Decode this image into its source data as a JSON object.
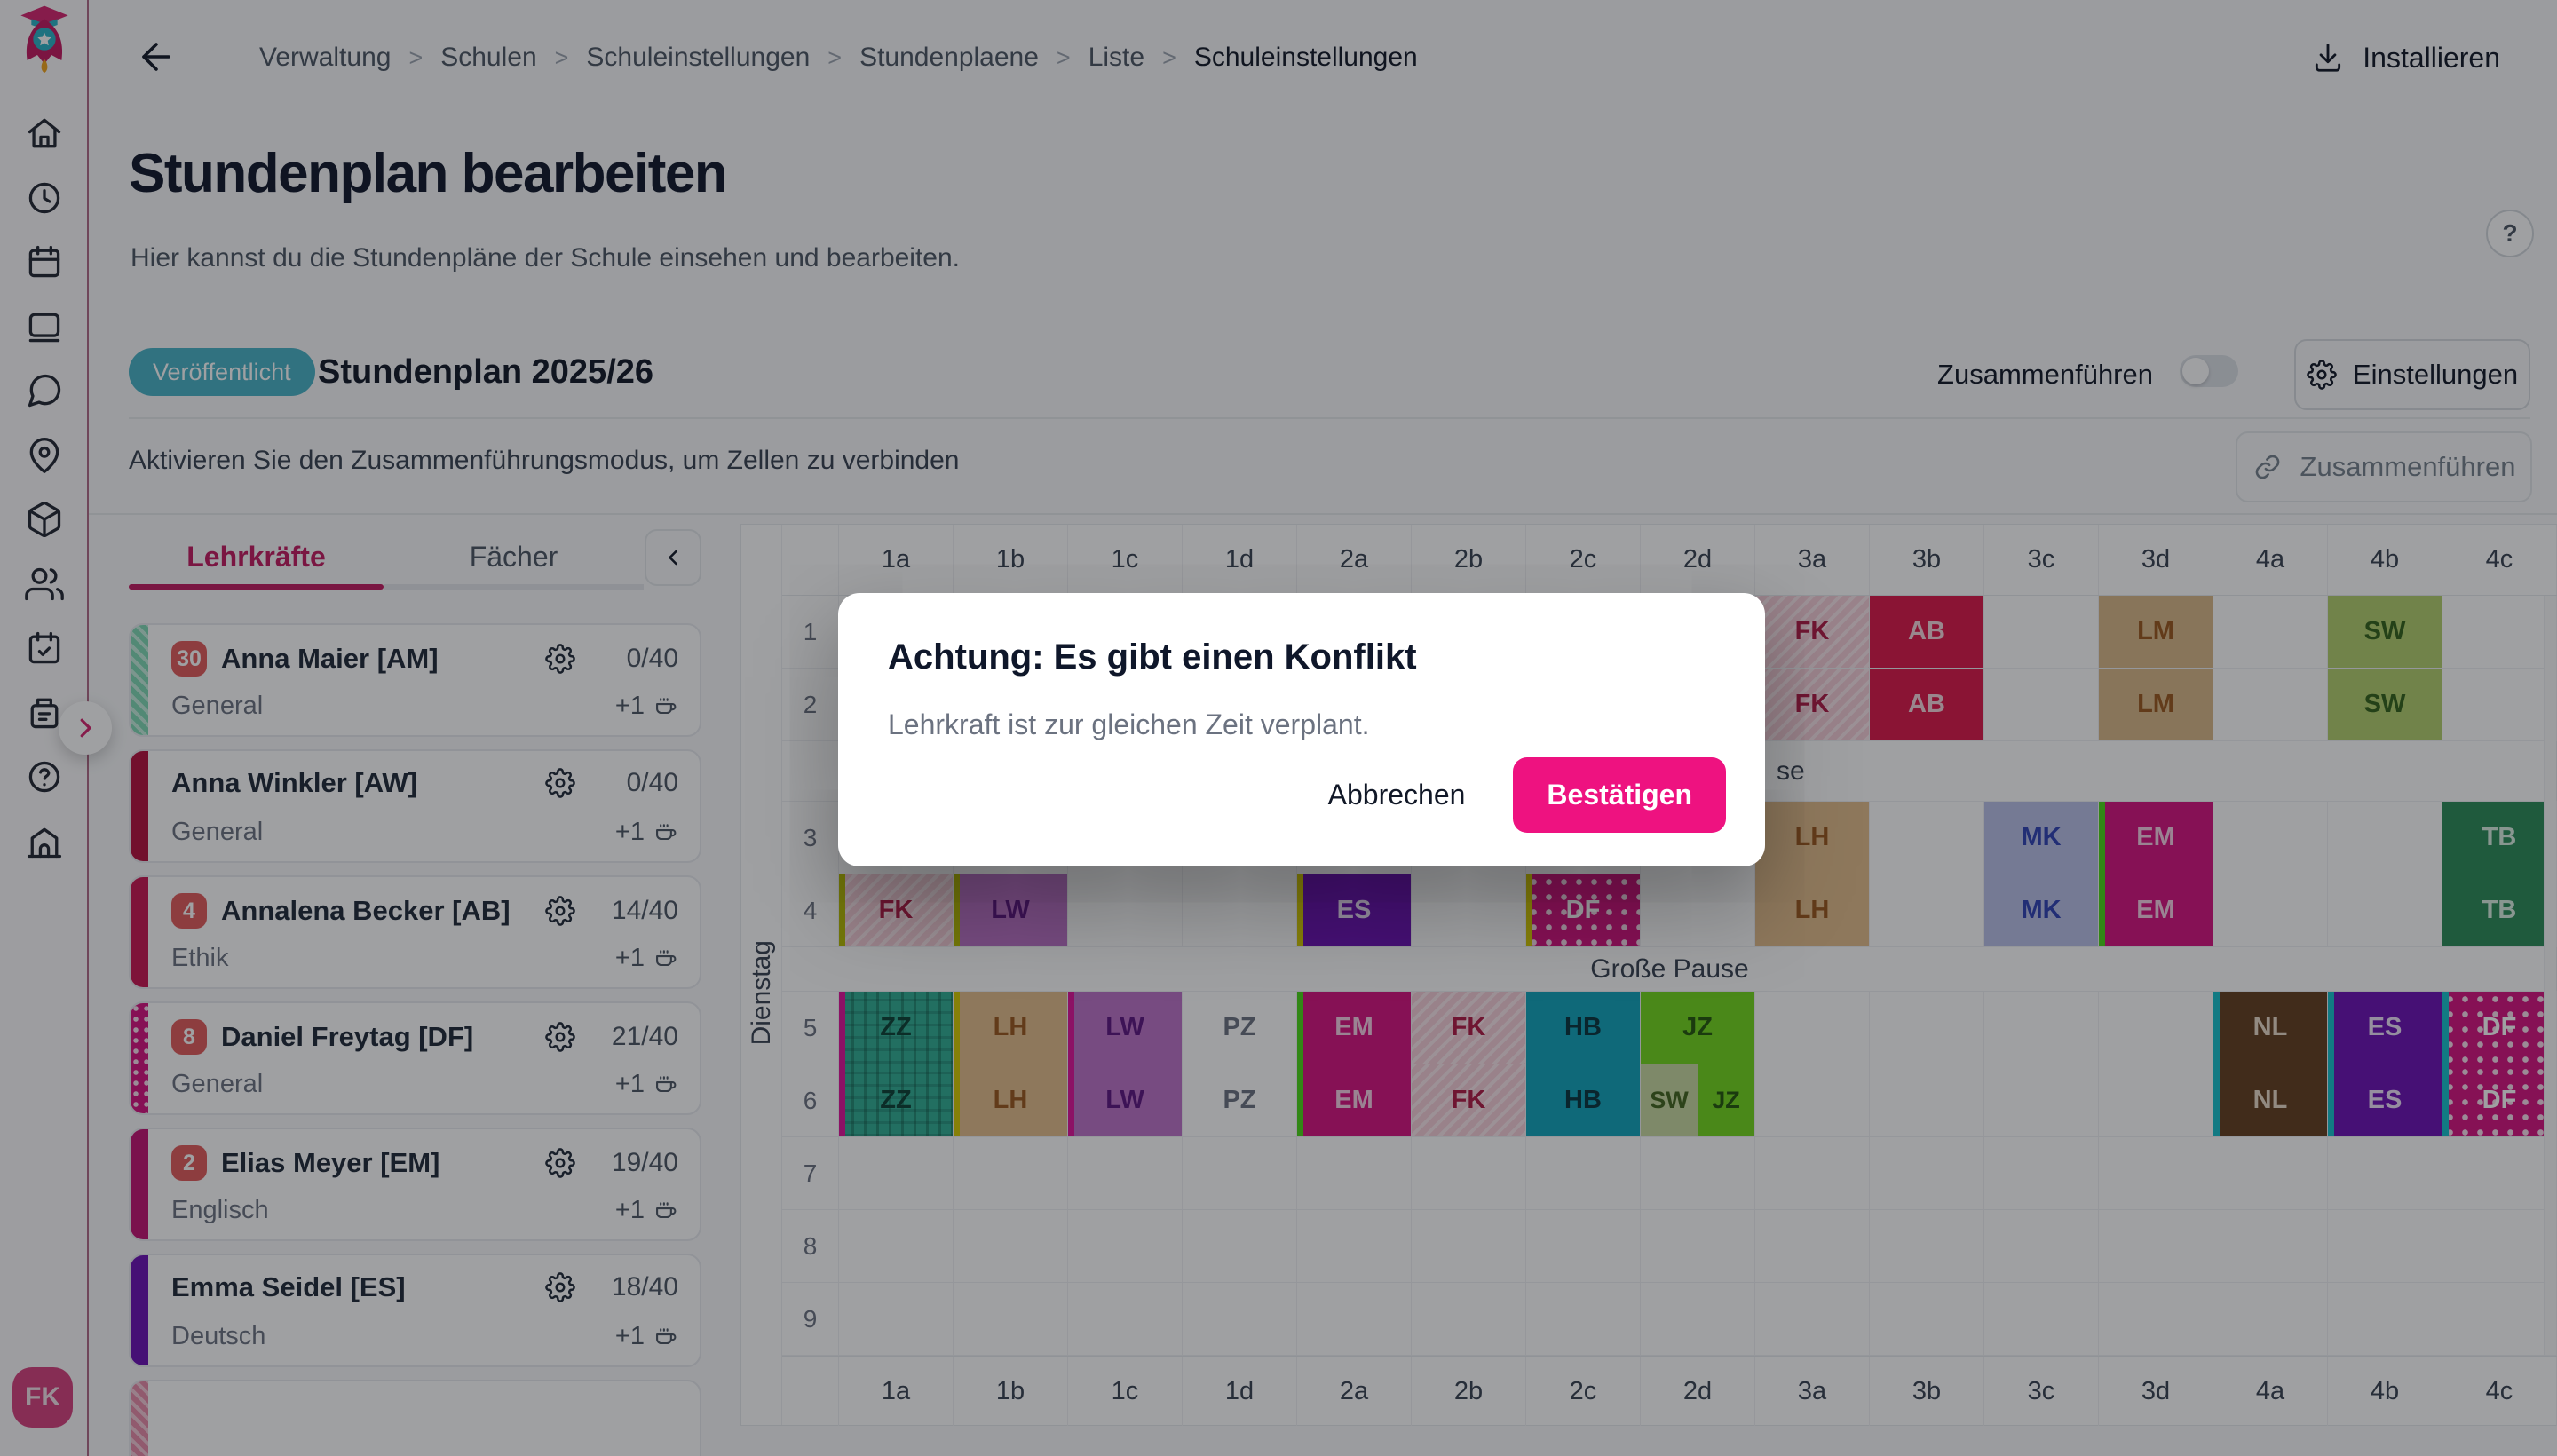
{
  "theme": {
    "accent": "#c2195f",
    "badge_teal": "#49b2c6",
    "confirm_pink": "#ee1280",
    "avatar_pink": "#d6407e"
  },
  "sidebar": {
    "icons": [
      "home",
      "clock",
      "calendar",
      "book",
      "chat",
      "map-pin",
      "package",
      "users",
      "calendar-check",
      "invoice",
      "help",
      "school"
    ],
    "avatar": "FK"
  },
  "topbar": {
    "breadcrumbs": [
      {
        "label": "Verwaltung"
      },
      {
        "label": "Schulen"
      },
      {
        "label": "Schuleinstellungen"
      },
      {
        "label": "Stundenplaene"
      },
      {
        "label": "Liste"
      },
      {
        "label": "Schuleinstellungen",
        "current": true
      }
    ],
    "install_label": "Installieren"
  },
  "page": {
    "title": "Stundenplan bearbeiten",
    "subtitle": "Hier kannst du die Stundenpläne der Schule einsehen und bearbeiten.",
    "help_glyph": "?"
  },
  "plan": {
    "status_badge": "Veröffentlicht",
    "name": "Stundenplan 2025/26",
    "merge_toggle_label": "Zusammenführen",
    "merge_toggle_on": false,
    "settings_label": "Einstellungen",
    "hint": "Aktivieren Sie den Zusammenführungsmodus, um Zellen zu verbinden",
    "merge_button_label": "Zusammenführen"
  },
  "panel": {
    "tabs": [
      {
        "label": "Lehrkräfte",
        "active": true
      },
      {
        "label": "Fächer",
        "active": false
      }
    ],
    "teachers": [
      {
        "badge": "30",
        "name": "Anna Maier [AM]",
        "subject": "General",
        "load": "0/40",
        "extra": "+1",
        "stripe": {
          "color": "#7fd9b5",
          "pattern": "hatch"
        }
      },
      {
        "badge": "",
        "name": "Anna Winkler [AW]",
        "subject": "General",
        "load": "0/40",
        "extra": "+1",
        "stripe": {
          "color": "#b50f3c",
          "pattern": "solid"
        }
      },
      {
        "badge": "4",
        "name": "Annalena Becker [AB]",
        "subject": "Ethik",
        "load": "14/40",
        "extra": "+1",
        "stripe": {
          "color": "#c81450",
          "pattern": "solid"
        }
      },
      {
        "badge": "8",
        "name": "Daniel Freytag [DF]",
        "subject": "General",
        "load": "21/40",
        "extra": "+1",
        "stripe": {
          "color": "#d5117f",
          "pattern": "dots"
        }
      },
      {
        "badge": "2",
        "name": "Elias Meyer [EM]",
        "subject": "Englisch",
        "load": "19/40",
        "extra": "+1",
        "stripe": {
          "color": "#c11272",
          "pattern": "solid"
        }
      },
      {
        "badge": "",
        "name": "Emma Seidel [ES]",
        "subject": "Deutsch",
        "load": "18/40",
        "extra": "+1",
        "stripe": {
          "color": "#6c10b4",
          "pattern": "solid"
        }
      },
      {
        "badge": "",
        "name": "",
        "subject": "",
        "load": "",
        "extra": "",
        "stripe": {
          "color": "#e88aa8",
          "pattern": "hatch"
        },
        "partial": true
      }
    ]
  },
  "timetable": {
    "day_label": "Dienstag",
    "classes": [
      "1a",
      "1b",
      "1c",
      "1d",
      "2a",
      "2b",
      "2c",
      "2d",
      "3a",
      "3b",
      "3c",
      "3d",
      "4a",
      "4b",
      "4c"
    ],
    "rows": [
      {
        "type": "period",
        "num": "1",
        "cells": [
          {
            "col": 8,
            "code": "FK"
          },
          {
            "col": 9,
            "code": "AB"
          },
          {
            "col": 11,
            "code": "LM"
          },
          {
            "col": 13,
            "code": "SW"
          }
        ]
      },
      {
        "type": "period",
        "num": "2",
        "cells": [
          {
            "col": 8,
            "code": "FK"
          },
          {
            "col": 9,
            "code": "AB"
          },
          {
            "col": 11,
            "code": "LM"
          },
          {
            "col": 13,
            "code": "SW"
          }
        ]
      },
      {
        "type": "break",
        "label": "se"
      },
      {
        "type": "period",
        "num": "3",
        "cells": [
          {
            "col": 8,
            "code": "LH"
          },
          {
            "col": 10,
            "code": "MK"
          },
          {
            "col": 11,
            "code": "EM",
            "edge": "green"
          },
          {
            "col": 14,
            "code": "TB"
          }
        ]
      },
      {
        "type": "period",
        "num": "4",
        "cells": [
          {
            "col": 0,
            "code": "FK",
            "edge": "olive"
          },
          {
            "col": 1,
            "code": "LW",
            "edge": "olive"
          },
          {
            "col": 4,
            "code": "ES",
            "edge": "yellow"
          },
          {
            "col": 6,
            "code": "DF",
            "edge": "yellow"
          },
          {
            "col": 8,
            "code": "LH"
          },
          {
            "col": 10,
            "code": "MK"
          },
          {
            "col": 11,
            "code": "EM",
            "edge": "green"
          },
          {
            "col": 14,
            "code": "TB"
          }
        ]
      },
      {
        "type": "break",
        "label": "Große Pause"
      },
      {
        "type": "period",
        "num": "5",
        "cells": [
          {
            "col": 0,
            "code": "ZZ",
            "edge": "magenta"
          },
          {
            "col": 1,
            "code": "LH",
            "edge": "yellow"
          },
          {
            "col": 2,
            "code": "LW",
            "edge": "magenta"
          },
          {
            "col": 3,
            "code": "PZ"
          },
          {
            "col": 4,
            "code": "EM",
            "edge": "green"
          },
          {
            "col": 5,
            "code": "FK"
          },
          {
            "col": 6,
            "code": "HB"
          },
          {
            "col": 7,
            "code": "JZ"
          },
          {
            "col": 12,
            "code": "NL",
            "edge": "teal"
          },
          {
            "col": 13,
            "code": "ES",
            "edge": "teal"
          },
          {
            "col": 14,
            "code": "DF",
            "edge": "teal"
          }
        ]
      },
      {
        "type": "period",
        "num": "6",
        "cells": [
          {
            "col": 0,
            "code": "ZZ",
            "edge": "magenta"
          },
          {
            "col": 1,
            "code": "LH",
            "edge": "yellow"
          },
          {
            "col": 2,
            "code": "LW",
            "edge": "magenta"
          },
          {
            "col": 3,
            "code": "PZ"
          },
          {
            "col": 4,
            "code": "EM",
            "edge": "green"
          },
          {
            "col": 5,
            "code": "FK"
          },
          {
            "col": 6,
            "code": "HB"
          },
          {
            "col": 7,
            "split": [
              {
                "code": "SW",
                "style": "SWL"
              },
              {
                "code": "JZ"
              }
            ]
          },
          {
            "col": 12,
            "code": "NL",
            "edge": "teal"
          },
          {
            "col": 13,
            "code": "ES",
            "edge": "teal"
          },
          {
            "col": 14,
            "code": "DF",
            "edge": "teal"
          }
        ]
      },
      {
        "type": "period",
        "num": "7",
        "cells": []
      },
      {
        "type": "period",
        "num": "8",
        "cells": []
      },
      {
        "type": "period",
        "num": "9",
        "cells": []
      }
    ]
  },
  "palette": {
    "FK": {
      "bg": "#f6cdd8",
      "fg": "#b01945",
      "pattern": "hatch"
    },
    "AB": {
      "bg": "#dc1648",
      "fg": "#f6d5dd"
    },
    "LM": {
      "bg": "#d9b887",
      "fg": "#9a571d"
    },
    "SW": {
      "bg": "#b3cf6d",
      "fg": "#33621a"
    },
    "SWL": {
      "bg": "#c9d9a0",
      "fg": "#41641d"
    },
    "LH": {
      "bg": "#e3bd8a",
      "fg": "#9a571d"
    },
    "MK": {
      "bg": "#b9c0e8",
      "fg": "#2f41b5"
    },
    "EM": {
      "bg": "#d5117f",
      "fg": "#f7cfe5"
    },
    "TB": {
      "bg": "#2a8a58",
      "fg": "#d9efe2"
    },
    "LW": {
      "bg": "#bd72c8",
      "fg": "#5c1580"
    },
    "ES": {
      "bg": "#6c10b4",
      "fg": "#efe2fb"
    },
    "DF": {
      "bg": "#d5117f",
      "fg": "#ffffff",
      "pattern": "dots"
    },
    "ZZ": {
      "bg": "#2fae93",
      "fg": "#0b4034",
      "pattern": "plaid"
    },
    "PZ": {
      "bg": "transparent",
      "fg": "#6b7280"
    },
    "HB": {
      "bg": "#0fa3bb",
      "fg": "#07333c"
    },
    "JZ": {
      "bg": "#72d81c",
      "fg": "#23570a"
    },
    "NL": {
      "bg": "#633e1f",
      "fg": "#eadbc9"
    }
  },
  "edges": {
    "green": "#4ad616",
    "olive": "#b8bd00",
    "yellow": "#d6ca00",
    "magenta": "#e0129a",
    "teal": "#14c0cc"
  },
  "modal": {
    "title": "Achtung: Es gibt einen Konflikt",
    "body": "Lehrkraft ist zur gleichen Zeit verplant.",
    "cancel_label": "Abbrechen",
    "confirm_label": "Bestätigen"
  }
}
